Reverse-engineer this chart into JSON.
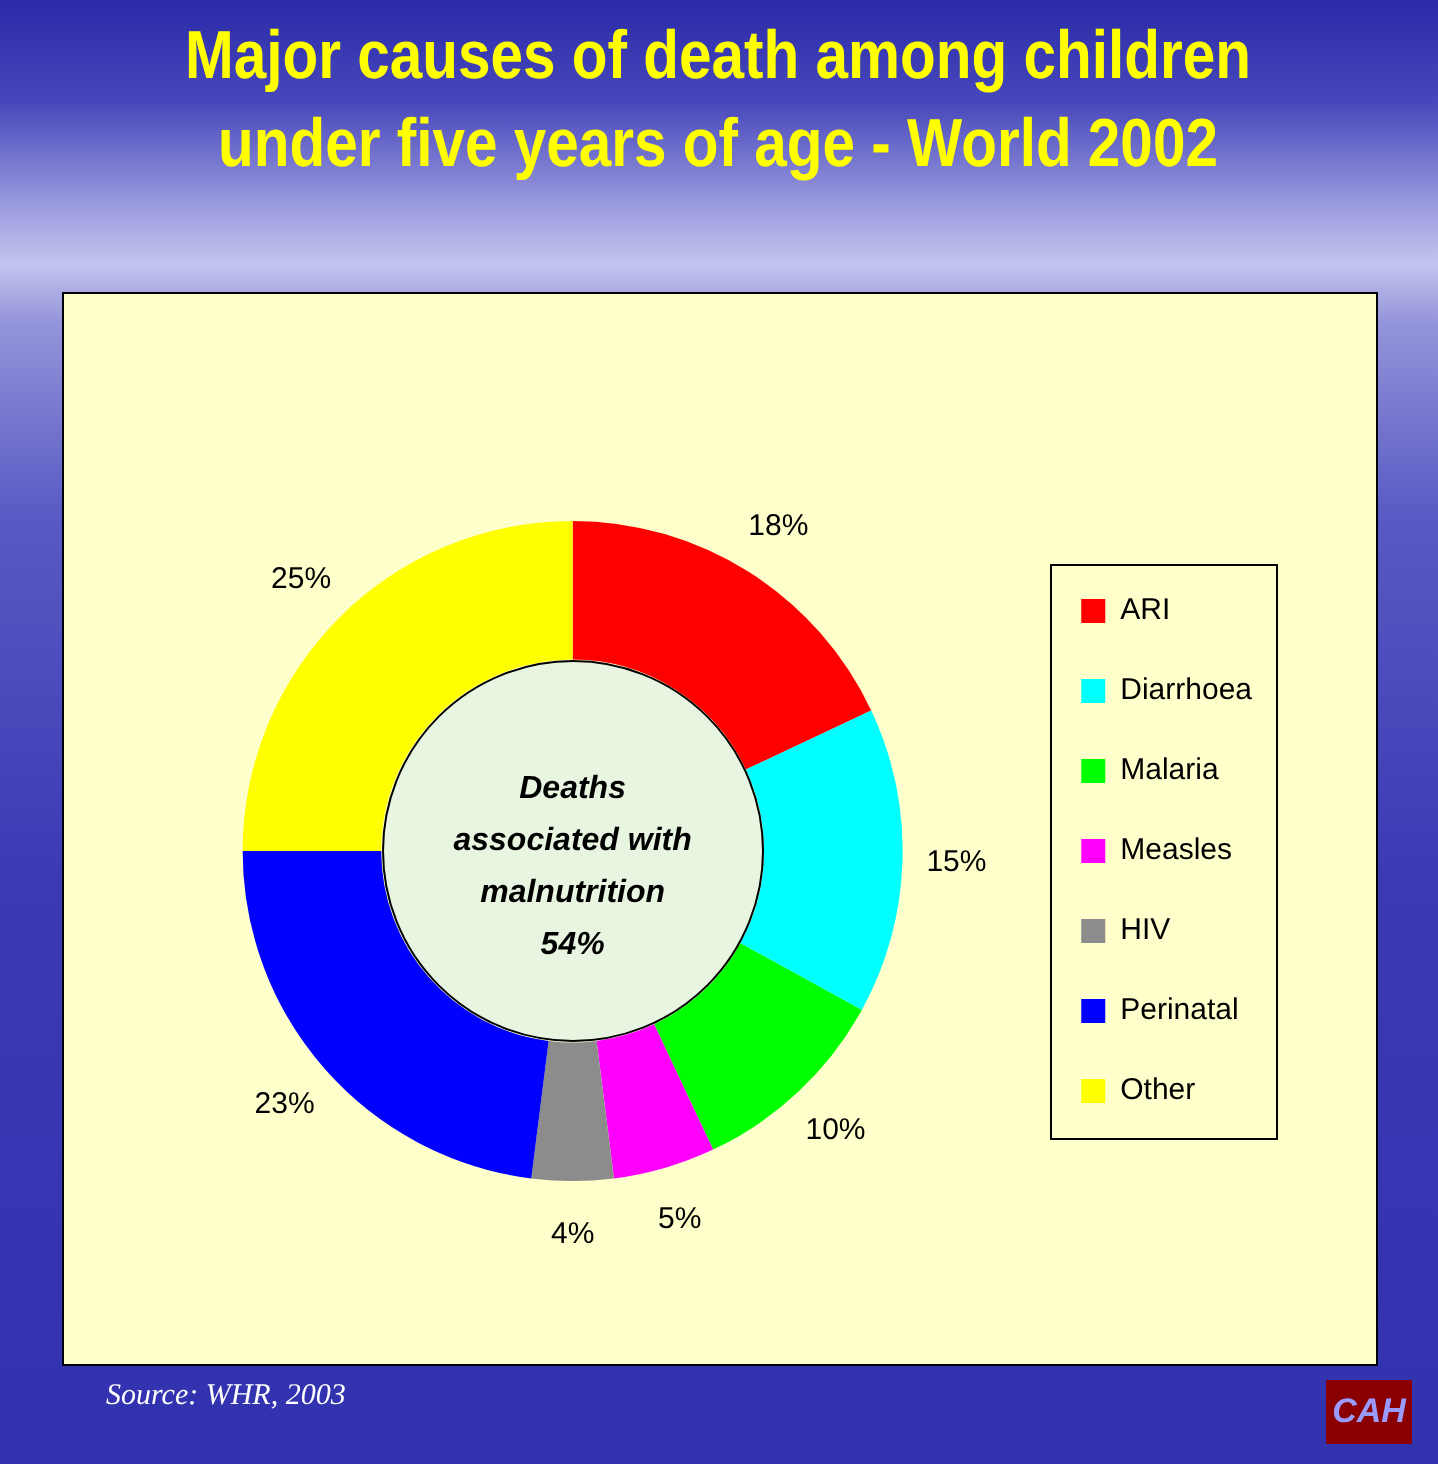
{
  "chart_data": {
    "type": "donut",
    "title": "Major causes of death among children under five years of age - World 2002",
    "categories": [
      "ARI",
      "Diarrhoea",
      "Malaria",
      "Measles",
      "HIV",
      "Perinatal",
      "Other"
    ],
    "values": [
      18,
      15,
      10,
      5,
      4,
      23,
      25
    ],
    "colors": [
      "#ff0000",
      "#00ffff",
      "#00ff00",
      "#ff00ff",
      "#8c8c8c",
      "#0000ff",
      "#ffff00"
    ],
    "value_labels": [
      "18%",
      "15%",
      "10%",
      "5%",
      "4%",
      "23%",
      "25%"
    ],
    "legend": "right",
    "annotations": [
      "Deaths associated with malnutrition 54%",
      "Source: WHR, 2003",
      "CAH"
    ]
  }
}
